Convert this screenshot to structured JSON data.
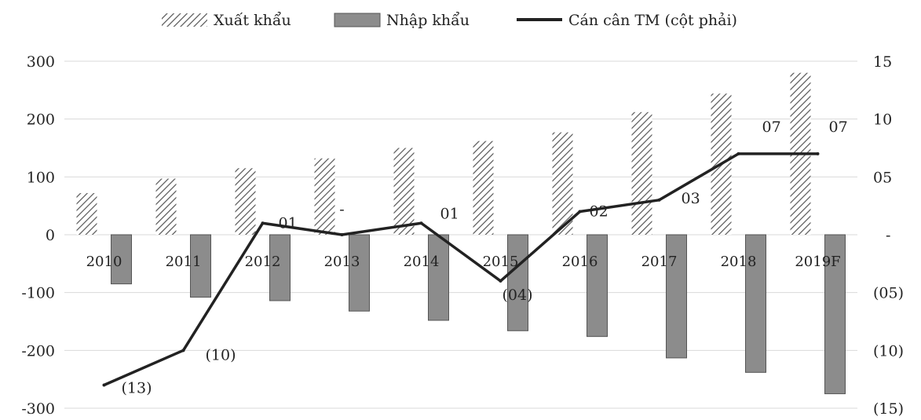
{
  "chart_data": {
    "type": "bar",
    "categories": [
      "2010",
      "2011",
      "2012",
      "2013",
      "2014",
      "2015",
      "2016",
      "2017",
      "2018",
      "2019F"
    ],
    "series": [
      {
        "name": "Xuất khẩu",
        "type": "bar",
        "axis": "left",
        "values": [
          72,
          97,
          115,
          132,
          150,
          162,
          177,
          212,
          244,
          280
        ]
      },
      {
        "name": "Nhập khẩu",
        "type": "bar",
        "axis": "left",
        "values": [
          -85,
          -108,
          -114,
          -132,
          -148,
          -166,
          -176,
          -213,
          -238,
          -275
        ]
      },
      {
        "name": "Cán cân TM (cột phải)",
        "type": "line",
        "axis": "right",
        "values": [
          -13,
          -10,
          1,
          0,
          1,
          -4,
          2,
          3,
          7,
          7
        ]
      }
    ],
    "data_labels": [
      "(13)",
      "(10)",
      "01",
      "-",
      "01",
      "(04)",
      "02",
      "03",
      "07",
      "07"
    ],
    "y_left": {
      "ylim": [
        -300,
        300
      ],
      "ticks": [
        300,
        200,
        100,
        0,
        -100,
        -200,
        -300
      ],
      "tick_labels": [
        "300",
        "200",
        "100",
        "0",
        "-100",
        "-200",
        "-300"
      ]
    },
    "y_right": {
      "ylim": [
        -15,
        15
      ],
      "ticks": [
        15,
        10,
        5,
        0,
        -5,
        -10,
        -15
      ],
      "tick_labels": [
        "15",
        "10",
        "05",
        "-",
        "(05)",
        "(10)",
        "(15)"
      ]
    },
    "legend_position": "top",
    "grid": true,
    "colors": {
      "export_hatch": "#555555",
      "import_fill": "#8c8c8c",
      "line": "#222222",
      "grid": "#d9d9d9"
    }
  }
}
